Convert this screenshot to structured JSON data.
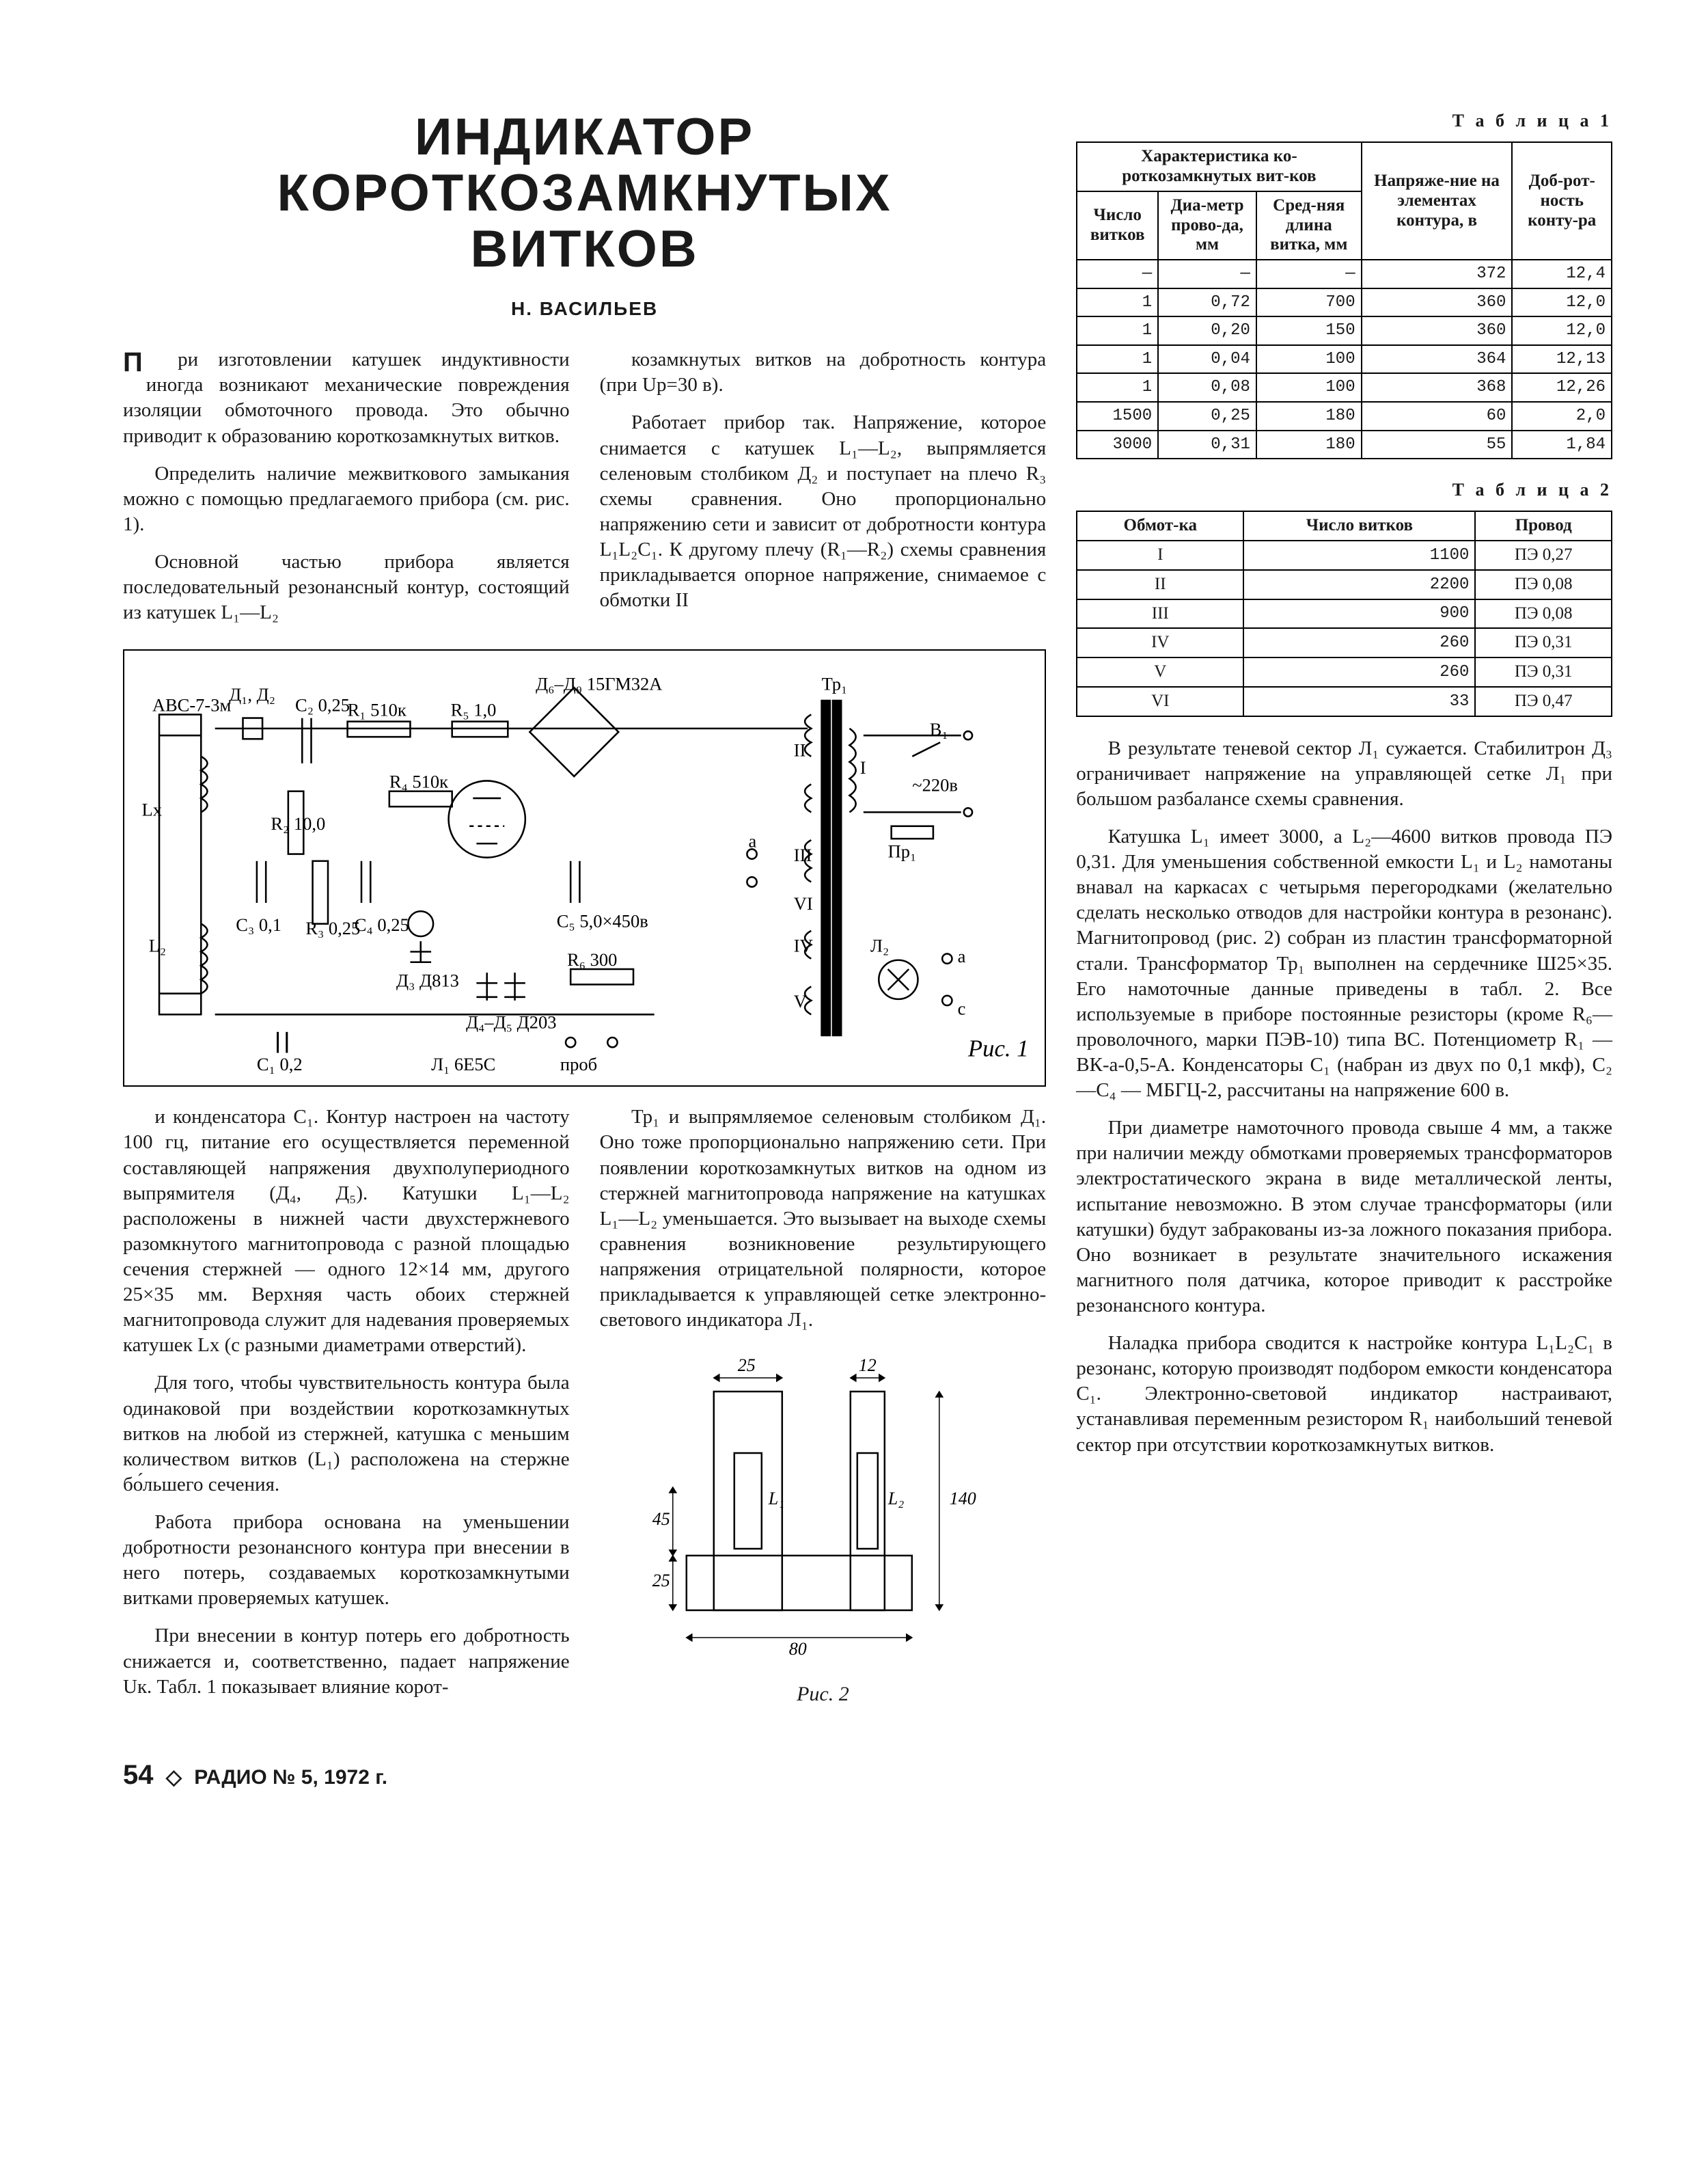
{
  "colors": {
    "text": "#1a1a1a",
    "bg": "#ffffff",
    "rule": "#000000"
  },
  "title": {
    "l1": "ИНДИКАТОР",
    "l2": "КОРОТКОЗАМКНУТЫХ",
    "l3": "ВИТКОВ"
  },
  "author": "Н. ВАСИЛЬЕВ",
  "table1": {
    "caption": "Т а б л и ц а 1",
    "head": {
      "group": "Характеристика ко-роткозамкнутых вит-ков",
      "c1": "Число витков",
      "c2": "Диа-метр прово-да, мм",
      "c3": "Сред-няя длина витка, мм",
      "c4": "Напряже-ние на элементах контура, в",
      "c5": "Доб-рот-ность конту-ра"
    },
    "rows": [
      [
        "—",
        "—",
        "—",
        "372",
        "12,4"
      ],
      [
        "1",
        "0,72",
        "700",
        "360",
        "12,0"
      ],
      [
        "1",
        "0,20",
        "150",
        "360",
        "12,0"
      ],
      [
        "1",
        "0,04",
        "100",
        "364",
        "12,13"
      ],
      [
        "1",
        "0,08",
        "100",
        "368",
        "12,26"
      ],
      [
        "1500",
        "0,25",
        "180",
        "60",
        "2,0"
      ],
      [
        "3000",
        "0,31",
        "180",
        "55",
        "1,84"
      ]
    ]
  },
  "table2": {
    "caption": "Т а б л и ц а 2",
    "head": {
      "c1": "Обмот-ка",
      "c2": "Число витков",
      "c3": "Провод"
    },
    "rows": [
      [
        "I",
        "1100",
        "ПЭ 0,27"
      ],
      [
        "II",
        "2200",
        "ПЭ 0,08"
      ],
      [
        "III",
        "900",
        "ПЭ 0,08"
      ],
      [
        "IV",
        "260",
        "ПЭ 0,31"
      ],
      [
        "V",
        "260",
        "ПЭ 0,31"
      ],
      [
        "VI",
        "33",
        "ПЭ 0,47"
      ]
    ]
  },
  "para": {
    "p1a": "ри изготовлении катушек индуктивности иногда возникают механические повреждения изоляции обмоточного провода. Это обычно приводит к образованию короткозамкнутых витков.",
    "p2": "Определить наличие межвиткового замыкания можно с помощью предлагаемого прибора (см. рис. 1).",
    "p3": "Основной частью прибора является последовательный резонансный контур, состоящий из катушек L₁—L₂",
    "p4": "козамкнутых витков на добротность контура (при Uр=30 в).",
    "p5": "Работает прибор так. Напряжение, которое снимается с катушек L₁—L₂, выпрямляется селеновым столбиком Д₂ и поступает на плечо R₃ схемы сравнения. Оно пропорционально напряжению сети и зависит от добротности контура L₁L₂C₁. К другому плечу (R₁—R₂) схемы сравнения прикладывается опорное напряжение, снимаемое с обмотки II",
    "p6": "и конденсатора C₁. Контур настроен на частоту 100 гц, питание его осуществляется переменной составляющей напряжения двухполупериодного выпрямителя (Д₄, Д₅). Катушки L₁—L₂ расположены в нижней части двухстержневого разомкнутого магнитопровода с разной площадью сечения стержней — одного 12×14 мм, другого 25×35 мм. Верхняя часть обоих стержней магнитопровода служит для надевания проверяемых катушек Lx (с разными диаметрами отверстий).",
    "p7": "Для того, чтобы чувствительность контура была одинаковой при воздействии короткозамкнутых витков на любой из стержней, катушка с меньшим количеством витков (L₁) расположена на стержне бо́льшего сечения.",
    "p8": "Работа прибора основана на уменьшении добротности резонансного контура при внесении в него потерь, создаваемых короткозамкнутыми витками проверяемых катушек.",
    "p9": "При внесении в контур потерь его добротность снижается и, соответственно, падает напряжение Uк. Табл. 1 показывает влияние корот-",
    "p10": "Тр₁ и выпрямляемое селеновым столбиком Д₁. Оно тоже пропорционально напряжению сети. При появлении короткозамкнутых витков на одном из стержней магнитопровода напряжение на катушках L₁—L₂ уменьшается. Это вызывает на выходе схемы сравнения возникновение результирующего напряжения отрицательной полярности, которое прикладывается к управляющей сетке электронно-светового индикатора Л₁."
  },
  "rightcol": {
    "p1": "В результате теневой сектор Л₁ сужается. Стабилитрон Д₃ ограничивает напряжение на управляющей сетке Л₁ при большом разбалансе схемы сравнения.",
    "p2": "Катушка L₁ имеет 3000, а L₂—4600 витков провода ПЭ 0,31. Для уменьшения собственной емкости L₁ и L₂ намотаны внавал на каркасах с четырьмя перегородками (желательно сделать несколько отводов для настройки контура в резонанс). Магнитопровод (рис. 2) собран из пластин трансформаторной стали. Трансформатор Тр₁ выполнен на сердечнике Ш25×35. Его намоточные данные приведены в табл. 2. Все используемые в приборе постоянные резисторы (кроме R₆—проволочного, марки ПЭВ-10) типа ВС. Потенциометр R₁ — ВК-а-0,5-А. Конденсаторы C₁ (набран из двух по 0,1 мкф), C₂—C₄ — МБГЦ-2, рассчитаны на напряжение 600 в.",
    "p3": "При диаметре намоточного провода свыше 4 мм, а также при наличии между обмотками проверяемых трансформаторов электростатического экрана в виде металлической ленты, испытание невозможно. В этом случае трансформаторы (или катушки) будут забракованы из-за ложного показания прибора. Оно возникает в результате значительного искажения магнитного поля датчика, которое приводит к расстройке резонансного контура.",
    "p4": "Наладка прибора сводится к настройке контура L₁L₂C₁ в резонанс, которую производят подбором емкости конденсатора C₁. Электронно-световой индикатор настраивают, устанавливая переменным резистором R₁ наибольший теневой сектор при отсутствии короткозамкнутых витков."
  },
  "fig1": {
    "caption": "Рис. 1",
    "labels": {
      "d12": "Д₁, Д₂",
      "avc": "АВС-7-3м",
      "c2": "C₂ 0,25",
      "r1": "R₁ 510к",
      "r5": "R₅ 1,0",
      "d69": "Д₆–Д₉ 15ГМ32А",
      "r2": "R₂ 10,0",
      "r4": "R₄ 510к",
      "lx": "Lx",
      "c3": "C₃ 0,1",
      "r3": "R₃ 0,25",
      "c4": "C₄ 0,25",
      "c5": "C₅ 5,0×450в",
      "d3": "Д₃ Д813",
      "d45": "Д₄–Д₅ Д203",
      "r6": "R₆ 300",
      "l2": "L₂",
      "c1": "C₁ 0,2",
      "l1": "Л₁ 6Е5С",
      "prob": "проб",
      "l2lamp": "Л₂",
      "tp1": "Тр₁",
      "i": "I",
      "ii": "II",
      "iii": "III",
      "iv": "IV",
      "v": "V",
      "vi": "VI",
      "pr1": "Пр₁",
      "v220": "~220в",
      "b1": "В₁",
      "a": "а",
      "c": "с"
    }
  },
  "fig2": {
    "caption": "Рис. 2",
    "dims": {
      "top1": "25",
      "top2": "12",
      "h1": "45",
      "h2": "25",
      "w": "80",
      "h140": "140"
    },
    "labels": {
      "l1": "L₁",
      "l2": "L₂"
    }
  },
  "footer": {
    "page": "54",
    "mag": "РАДИО № 5, 1972 г."
  }
}
